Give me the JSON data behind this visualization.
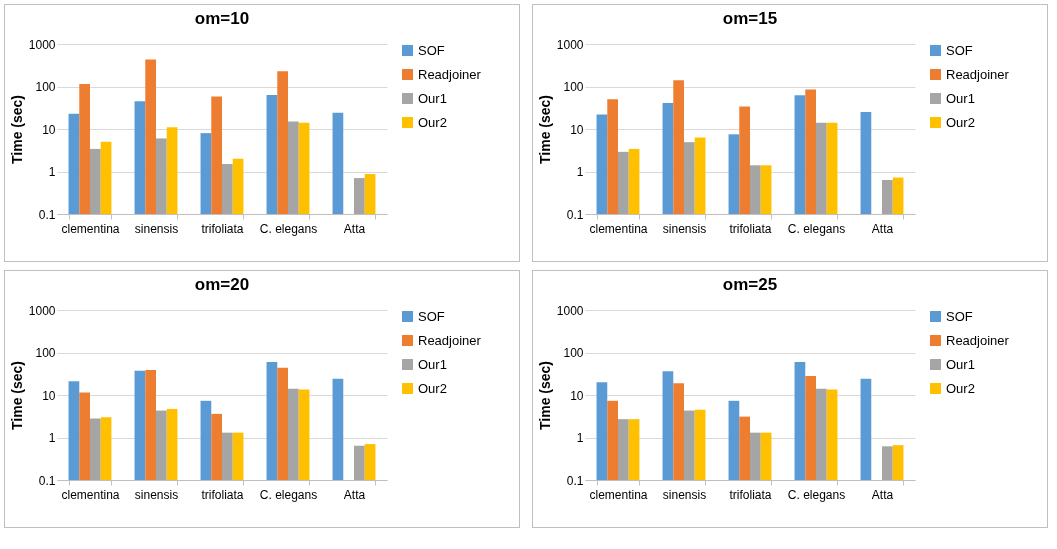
{
  "chart_data": [
    {
      "type": "bar",
      "title": "om=10",
      "ylabel": "Time (sec)",
      "categories": [
        "clementina",
        "sinensis",
        "trifoliata",
        "C. elegans",
        "Atta"
      ],
      "log": true,
      "ylim": [
        0.1,
        1000
      ],
      "yticks": [
        0.1,
        1,
        10,
        100,
        1000
      ],
      "grid": "y",
      "legend": "right",
      "series": [
        {
          "name": "SOF",
          "color": "#5b9bd5",
          "values": [
            23,
            45,
            8,
            63,
            24
          ]
        },
        {
          "name": "Readjoiner",
          "color": "#ed7d31",
          "values": [
            115,
            430,
            58,
            230,
            null
          ]
        },
        {
          "name": "Our1",
          "color": "#a5a5a5",
          "values": [
            3.4,
            6,
            1.5,
            15,
            0.7
          ]
        },
        {
          "name": "Our2",
          "color": "#ffc000",
          "values": [
            5,
            11,
            2,
            14,
            0.87
          ]
        }
      ]
    },
    {
      "type": "bar",
      "title": "om=15",
      "ylabel": "Time (sec)",
      "categories": [
        "clementina",
        "sinensis",
        "trifoliata",
        "C. elegans",
        "Atta"
      ],
      "log": true,
      "ylim": [
        0.1,
        1000
      ],
      "yticks": [
        0.1,
        1,
        10,
        100,
        1000
      ],
      "grid": "y",
      "legend": "right",
      "series": [
        {
          "name": "SOF",
          "color": "#5b9bd5",
          "values": [
            22,
            41,
            7.5,
            62,
            25
          ]
        },
        {
          "name": "Readjoiner",
          "color": "#ed7d31",
          "values": [
            50,
            140,
            34,
            85,
            null
          ]
        },
        {
          "name": "Our1",
          "color": "#a5a5a5",
          "values": [
            2.9,
            4.9,
            1.4,
            14,
            0.63
          ]
        },
        {
          "name": "Our2",
          "color": "#ffc000",
          "values": [
            3.4,
            6.3,
            1.4,
            14,
            0.72
          ]
        }
      ]
    },
    {
      "type": "bar",
      "title": "om=20",
      "ylabel": "Time (sec)",
      "categories": [
        "clementina",
        "sinensis",
        "trifoliata",
        "C. elegans",
        "Atta"
      ],
      "log": true,
      "ylim": [
        0.1,
        1000
      ],
      "yticks": [
        0.1,
        1,
        10,
        100,
        1000
      ],
      "grid": "y",
      "legend": "right",
      "series": [
        {
          "name": "SOF",
          "color": "#5b9bd5",
          "values": [
            21,
            37,
            7.3,
            60,
            24
          ]
        },
        {
          "name": "Readjoiner",
          "color": "#ed7d31",
          "values": [
            11.5,
            39,
            3.6,
            44,
            null
          ]
        },
        {
          "name": "Our1",
          "color": "#a5a5a5",
          "values": [
            2.8,
            4.3,
            1.3,
            14,
            0.64
          ]
        },
        {
          "name": "Our2",
          "color": "#ffc000",
          "values": [
            3,
            4.7,
            1.3,
            13.5,
            0.7
          ]
        }
      ]
    },
    {
      "type": "bar",
      "title": "om=25",
      "ylabel": "Time (sec)",
      "categories": [
        "clementina",
        "sinensis",
        "trifoliata",
        "C. elegans",
        "Atta"
      ],
      "log": true,
      "ylim": [
        0.1,
        1000
      ],
      "yticks": [
        0.1,
        1,
        10,
        100,
        1000
      ],
      "grid": "y",
      "legend": "right",
      "series": [
        {
          "name": "SOF",
          "color": "#5b9bd5",
          "values": [
            20,
            36,
            7.3,
            60,
            24
          ]
        },
        {
          "name": "Readjoiner",
          "color": "#ed7d31",
          "values": [
            7.3,
            19,
            3.1,
            28,
            null
          ]
        },
        {
          "name": "Our1",
          "color": "#a5a5a5",
          "values": [
            2.7,
            4.3,
            1.3,
            14,
            0.62
          ]
        },
        {
          "name": "Our2",
          "color": "#ffc000",
          "values": [
            2.7,
            4.5,
            1.3,
            13.5,
            0.66
          ]
        }
      ]
    }
  ]
}
